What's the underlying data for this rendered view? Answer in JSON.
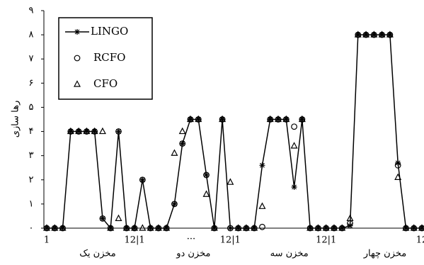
{
  "chart_data": {
    "type": "line",
    "y_label": "رها سازی",
    "categories": [
      "1",
      null,
      null,
      null,
      null,
      null,
      null,
      null,
      null,
      null,
      null,
      "12|1",
      null,
      null,
      null,
      null,
      null,
      null,
      null,
      null,
      null,
      null,
      null,
      "12|1",
      null,
      null,
      null,
      null,
      null,
      null,
      null,
      null,
      null,
      null,
      null,
      "12|1",
      null,
      null,
      null,
      null,
      null,
      null,
      null,
      null,
      null,
      null,
      null,
      "12"
    ],
    "groups": [
      "مخزن یک",
      "مخزن دو",
      "مخزن سه",
      "مخزن چهار"
    ],
    "annotation": "...",
    "ylim": [
      0,
      9
    ],
    "yticks": [
      {
        "value": 0,
        "label": "۰"
      },
      {
        "value": 1,
        "label": "۱"
      },
      {
        "value": 2,
        "label": "۲"
      },
      {
        "value": 3,
        "label": "۳"
      },
      {
        "value": 4,
        "label": "۴"
      },
      {
        "value": 5,
        "label": "۵"
      },
      {
        "value": 6,
        "label": "۶"
      },
      {
        "value": 7,
        "label": "۷"
      },
      {
        "value": 8,
        "label": "۸"
      },
      {
        "value": 9,
        "label": "۹"
      }
    ],
    "series": [
      {
        "name": "LINGO",
        "color": "#000000",
        "marker": "asterisk",
        "line": true,
        "values": [
          0,
          0,
          0,
          4,
          4,
          4,
          4,
          0.4,
          0,
          4,
          0,
          0,
          2,
          0,
          0,
          0,
          1,
          3.5,
          4.5,
          4.5,
          2.2,
          0,
          4.5,
          0,
          0,
          0,
          0,
          2.6,
          4.5,
          4.5,
          4.5,
          1.7,
          4.5,
          0,
          0,
          0,
          0,
          0,
          0.1,
          8,
          8,
          8,
          8,
          8,
          2.7,
          0,
          0,
          0
        ]
      },
      {
        "name": "RCFO",
        "color": "#000000",
        "marker": "circle",
        "line": false,
        "values": [
          0,
          0,
          0,
          4,
          4,
          4,
          4,
          0.4,
          0,
          4,
          0,
          0,
          2,
          0,
          0,
          0,
          1,
          3.5,
          4.5,
          4.5,
          2.2,
          0,
          4.5,
          0,
          0,
          0,
          0,
          0.05,
          4.5,
          4.5,
          4.5,
          4.2,
          4.5,
          0,
          0,
          0,
          0,
          0,
          0.2,
          8,
          8,
          8,
          8,
          8,
          2.6,
          0,
          0,
          0
        ]
      },
      {
        "name": "CFO",
        "color": "#000000",
        "marker": "triangle",
        "line": false,
        "values": [
          0,
          0,
          0,
          4,
          4,
          4,
          4,
          4,
          0,
          0.4,
          0,
          0,
          0,
          0,
          0,
          0,
          3.1,
          4,
          4.5,
          4.5,
          1.4,
          0,
          4.5,
          1.9,
          0,
          0,
          0,
          0.9,
          4.5,
          4.5,
          4.5,
          3.4,
          4.5,
          0,
          0,
          0,
          0,
          0,
          0.4,
          8,
          8,
          8,
          8,
          8,
          2.1,
          0,
          0,
          0
        ]
      }
    ]
  }
}
